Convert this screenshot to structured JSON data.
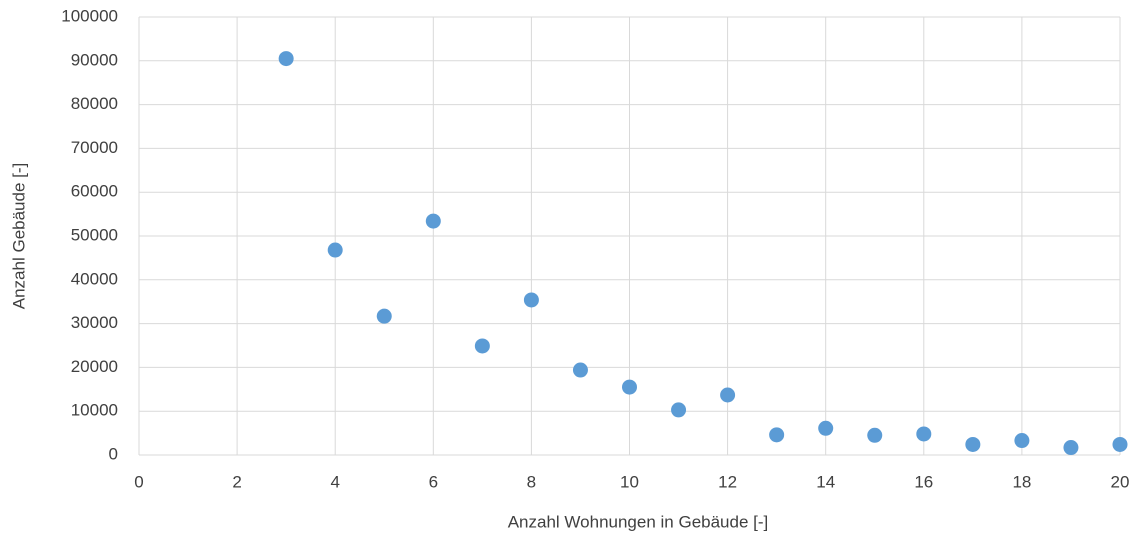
{
  "chart_data": {
    "type": "scatter",
    "x_label": "Anzahl Wohnungen in Gebäude [-]",
    "y_label": "Anzahl Gebäude [-]",
    "x": [
      3,
      4,
      5,
      6,
      7,
      8,
      9,
      10,
      11,
      12,
      13,
      14,
      15,
      16,
      17,
      18,
      19,
      20
    ],
    "values": [
      90500,
      46800,
      31700,
      53400,
      24900,
      35400,
      19400,
      15500,
      10300,
      13700,
      4600,
      6100,
      4500,
      4800,
      2400,
      3300,
      1700,
      2400
    ],
    "color": "#5b9bd5",
    "xlim": [
      0,
      20
    ],
    "xticks": [
      0,
      2,
      4,
      6,
      8,
      10,
      12,
      14,
      16,
      18,
      20
    ],
    "ylim": [
      0,
      100000
    ],
    "yticks": [
      0,
      10000,
      20000,
      30000,
      40000,
      50000,
      60000,
      70000,
      80000,
      90000,
      100000
    ],
    "grid": true
  }
}
